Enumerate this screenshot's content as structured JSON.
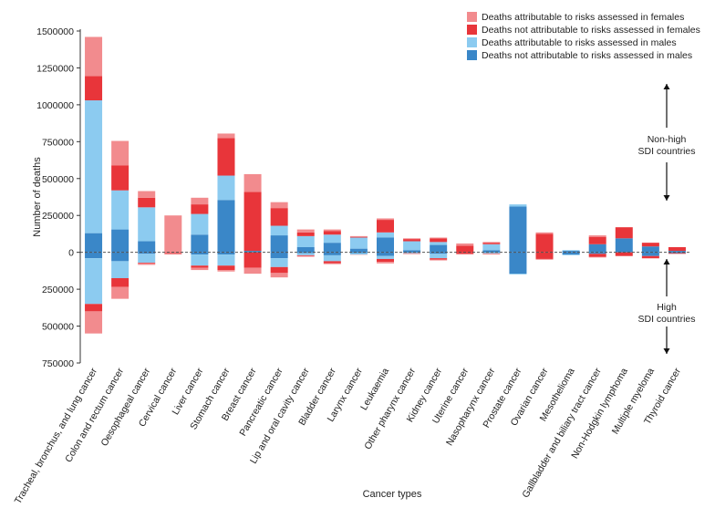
{
  "chart_data": {
    "type": "bar",
    "stacked": true,
    "diverging": true,
    "xlabel": "Cancer types",
    "ylabel": "Number of deaths",
    "ylim": [
      -750000,
      1500000
    ],
    "yticks": [
      1500000,
      1250000,
      1000000,
      750000,
      500000,
      250000,
      0,
      -250000,
      -500000,
      -750000
    ],
    "ytick_labels": [
      "1500000",
      "1250000",
      "1000000",
      "750000",
      "500000",
      "250000",
      "0",
      "250000",
      "500000",
      "750000"
    ],
    "categories": [
      "Tracheal, bronchus, and lung cancer",
      "Colon and rectum cancer",
      "Oesophageal cancer",
      "Cervical cancer",
      "Liver cancer",
      "Stomach cancer",
      "Breast cancer",
      "Pancreatic cancer",
      "Lip and oral cavity cancer",
      "Bladder cancer",
      "Larynx cancer",
      "Leukaemia",
      "Other pharynx cancer",
      "Kidney cancer",
      "Uterine cancer",
      "Nasopharynx cancer",
      "Prostate cancer",
      "Ovarian cancer",
      "Mesothelioma",
      "Gallbladder and biliary tract cancer",
      "Non-Hodgkin lymphoma",
      "Multiple myeloma",
      "Thyroid cancer"
    ],
    "series_order_from_zero": [
      "Deaths not attributable to risks assessed in males",
      "Deaths attributable to risks assessed in males",
      "Deaths not attributable to risks assessed in females",
      "Deaths attributable to risks assessed in females"
    ],
    "series": [
      {
        "name": "Deaths attributable to risks assessed in females",
        "color": "#f28b8e",
        "nonhigh": [
          265000,
          165000,
          45000,
          250000,
          45000,
          30000,
          120000,
          40000,
          20000,
          10000,
          5000,
          10000,
          5000,
          5000,
          15000,
          5000,
          0,
          10000,
          0,
          10000,
          0,
          0,
          0
        ],
        "high": [
          150000,
          80000,
          10000,
          10000,
          15000,
          10000,
          40000,
          30000,
          5000,
          5000,
          2000,
          10000,
          2000,
          5000,
          5000,
          2000,
          0,
          5000,
          0,
          5000,
          0,
          2000,
          0
        ]
      },
      {
        "name": "Deaths not attributable to risks assessed in females",
        "color": "#e8353a",
        "nonhigh": [
          165000,
          170000,
          65000,
          0,
          65000,
          255000,
          400000,
          120000,
          25000,
          25000,
          5000,
          85000,
          15000,
          25000,
          45000,
          10000,
          0,
          125000,
          0,
          50000,
          75000,
          25000,
          25000
        ],
        "high": [
          50000,
          60000,
          5000,
          5000,
          15000,
          30000,
          105000,
          40000,
          5000,
          15000,
          0,
          20000,
          3000,
          10000,
          10000,
          3000,
          0,
          45000,
          0,
          20000,
          25000,
          15000,
          5000
        ]
      },
      {
        "name": "Deaths attributable to risks assessed in males",
        "color": "#8ccbf0",
        "nonhigh": [
          900000,
          265000,
          230000,
          0,
          140000,
          165000,
          0,
          65000,
          75000,
          55000,
          75000,
          35000,
          60000,
          20000,
          0,
          40000,
          15000,
          0,
          5000,
          0,
          0,
          0,
          0
        ],
        "high": [
          310000,
          115000,
          60000,
          0,
          75000,
          75000,
          0,
          60000,
          15000,
          40000,
          10000,
          20000,
          5000,
          30000,
          0,
          5000,
          5000,
          0,
          5000,
          0,
          0,
          0,
          0
        ]
      },
      {
        "name": "Deaths not attributable to risks assessed in males",
        "color": "#3a87c8",
        "nonhigh": [
          130000,
          155000,
          75000,
          0,
          120000,
          355000,
          10000,
          115000,
          35000,
          65000,
          25000,
          100000,
          15000,
          50000,
          0,
          15000,
          310000,
          0,
          10000,
          55000,
          95000,
          40000,
          10000
        ],
        "high": [
          40000,
          60000,
          10000,
          0,
          15000,
          15000,
          0,
          40000,
          5000,
          20000,
          5000,
          25000,
          2000,
          10000,
          0,
          3000,
          145000,
          0,
          15000,
          10000,
          0,
          25000,
          5000
        ]
      }
    ],
    "legend": [
      "Deaths attributable to risks assessed in females",
      "Deaths not attributable to risks assessed in females",
      "Deaths attributable to risks assessed in males",
      "Deaths not attributable to risks assessed in males"
    ],
    "legend_position": "top-right",
    "annotations": {
      "upper": [
        "Non-high",
        "SDI countries"
      ],
      "lower": [
        "High",
        "SDI countries"
      ]
    }
  }
}
